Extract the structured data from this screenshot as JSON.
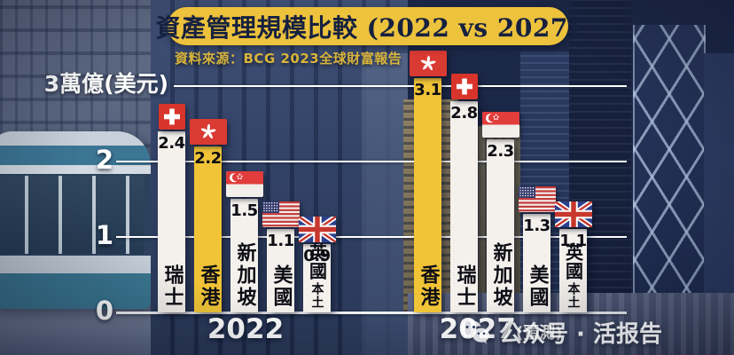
{
  "title": "資產管理規模比較 (2022 vs 2027)",
  "source": "資料來源：BCG 2023全球財富報告",
  "watermark": {
    "icon": "wechat-icon",
    "text": "公众号 · 活报告"
  },
  "y_axis": {
    "top_label": "3萬億(美元)",
    "ticks": [
      {
        "label": "2",
        "value": 2
      },
      {
        "label": "1",
        "value": 1
      },
      {
        "label": "0",
        "value": 0
      }
    ],
    "gridline_values": [
      3,
      2,
      1
    ]
  },
  "chart_data": {
    "type": "bar",
    "title": "資產管理規模比較 (2022 vs 2027)",
    "ylabel": "萬億(美元)",
    "ylim": [
      0,
      3.5
    ],
    "grid": true,
    "groups": [
      {
        "period": "2022",
        "period_suffix": "",
        "bars": [
          {
            "region": "瑞士",
            "region_sub": "",
            "value": 2.4,
            "flag": "switzerland",
            "highlight": false
          },
          {
            "region": "香港",
            "region_sub": "",
            "value": 2.2,
            "flag": "hong-kong",
            "highlight": true
          },
          {
            "region": "新加坡",
            "region_sub": "",
            "value": 1.5,
            "flag": "singapore",
            "highlight": false
          },
          {
            "region": "美國",
            "region_sub": "",
            "value": 1.1,
            "flag": "usa",
            "highlight": false
          },
          {
            "region": "英國",
            "region_sub": "本土",
            "value": 0.9,
            "flag": "uk",
            "highlight": false
          }
        ]
      },
      {
        "period": "2027",
        "period_suffix": "(預測)",
        "bars": [
          {
            "region": "香港",
            "region_sub": "",
            "value": 3.1,
            "flag": "hong-kong",
            "highlight": true
          },
          {
            "region": "瑞士",
            "region_sub": "",
            "value": 2.8,
            "flag": "switzerland",
            "highlight": false
          },
          {
            "region": "新加坡",
            "region_sub": "",
            "value": 2.3,
            "flag": "singapore",
            "highlight": false
          },
          {
            "region": "美國",
            "region_sub": "",
            "value": 1.3,
            "flag": "usa",
            "highlight": false
          },
          {
            "region": "英國",
            "region_sub": "本土",
            "value": 1.1,
            "flag": "uk",
            "highlight": false
          }
        ]
      }
    ]
  },
  "colors": {
    "highlight_bar": "#F0C436",
    "default_bar": "#F4F1EC",
    "title_bg": "#EDC23C",
    "title_text": "#16213F",
    "source_text": "#D8B43C",
    "background": "#222F52",
    "grid_line": "#FFFFFF",
    "value_text": "#0D0D15"
  }
}
